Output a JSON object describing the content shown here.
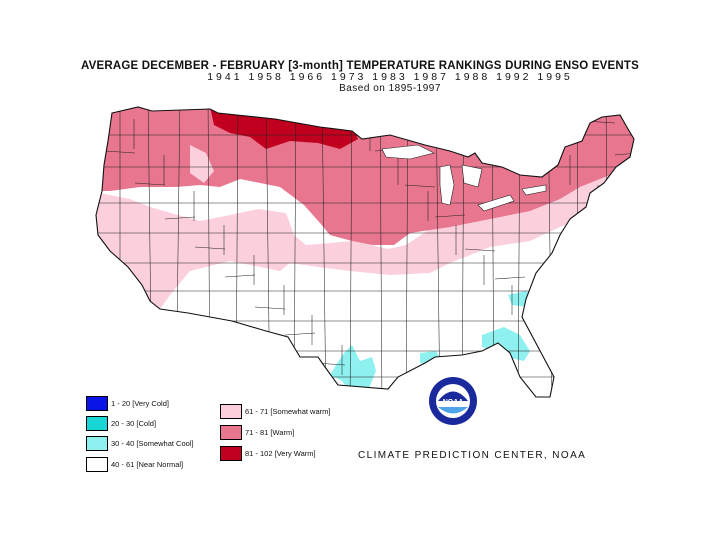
{
  "title": {
    "line1": "AVERAGE DECEMBER - FEBRUARY [3-month] TEMPERATURE RANKINGS DURING ENSO EVENTS",
    "line2": "1941   1958   1966   1973   1983   1987   1988   1992   1995",
    "line3": "Based on 1895-1997"
  },
  "legend": [
    {
      "label": "1 - 20 [Very Cold]",
      "color": "#0a14e6"
    },
    {
      "label": "20 - 30 [Cold]",
      "color": "#19d6d6"
    },
    {
      "label": "30 - 40 [Somewhat Cool]",
      "color": "#8ff0f0"
    },
    {
      "label": "40 - 61 [Near Normal]",
      "color": "#ffffff"
    },
    {
      "label": "61 - 71 [Somewhat warm]",
      "color": "#fbd0dc"
    },
    {
      "label": "71 - 81 [Warm]",
      "color": "#e8768f"
    },
    {
      "label": "81 - 102 [Very Warm]",
      "color": "#c0001e"
    }
  ],
  "credit": "CLIMATE PREDICTION CENTER, NOAA",
  "logo_text": "NOAA",
  "colors": {
    "very_warm": "#c0001e",
    "warm": "#e8768f",
    "somewhat_warm": "#fbd0dc",
    "near_normal": "#ffffff",
    "somewhat_cool": "#8ff0f0",
    "cold": "#19d6d6",
    "very_cold": "#0a14e6"
  }
}
